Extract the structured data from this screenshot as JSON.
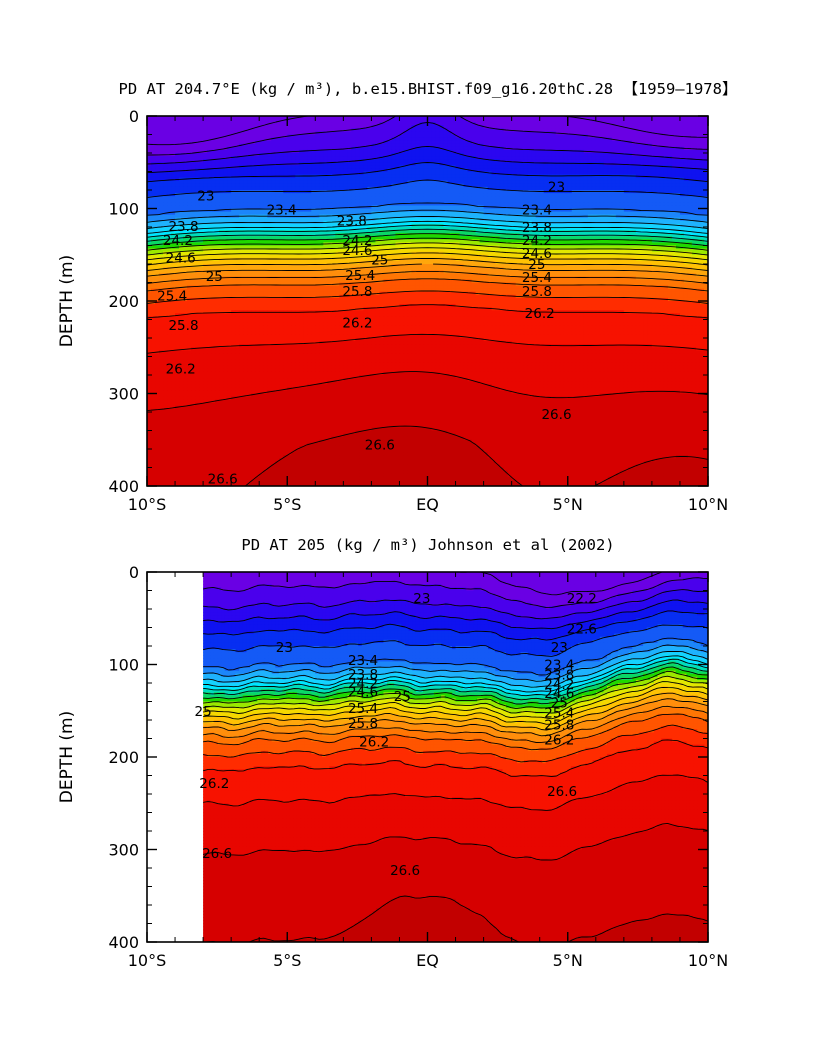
{
  "chart_data": [
    {
      "type": "contour",
      "title": "PD AT 204.7°E (kg / m³), b.e15.BHIST.f09_g16.20thC.28 【1959–1978】",
      "ylabel": "DEPTH (m)",
      "xlabel": "",
      "xlim": [
        -10,
        10
      ],
      "ylim": [
        400,
        0
      ],
      "y_inverted": true,
      "xticks": [
        -10,
        -5,
        0,
        5,
        10
      ],
      "xtick_labels": [
        "10°S",
        "5°S",
        "EQ",
        "5°N",
        "10°N"
      ],
      "yticks": [
        0,
        100,
        200,
        300,
        400
      ],
      "ytick_labels": [
        "0",
        "100",
        "200",
        "300",
        "400"
      ],
      "contour_interval": 0.2,
      "data_extent_x": [
        -10,
        10
      ],
      "surface_min_value": 21.8,
      "contour_labels": [
        {
          "text": "23",
          "x": -7.9,
          "y": 86
        },
        {
          "text": "23",
          "x": 4.6,
          "y": 76
        },
        {
          "text": "23.4",
          "x": -5.2,
          "y": 101
        },
        {
          "text": "23.4",
          "x": 3.9,
          "y": 101
        },
        {
          "text": "23.8",
          "x": -8.7,
          "y": 119
        },
        {
          "text": "23.8",
          "x": -2.7,
          "y": 113
        },
        {
          "text": "23.8",
          "x": 3.9,
          "y": 120
        },
        {
          "text": "24.2",
          "x": -8.9,
          "y": 134
        },
        {
          "text": "24.2",
          "x": -2.5,
          "y": 134
        },
        {
          "text": "24.2",
          "x": 3.9,
          "y": 134
        },
        {
          "text": "24.6",
          "x": -8.8,
          "y": 153
        },
        {
          "text": "24.6",
          "x": -2.5,
          "y": 145
        },
        {
          "text": "24.6",
          "x": 3.9,
          "y": 148
        },
        {
          "text": "25",
          "x": -1.7,
          "y": 155
        },
        {
          "text": "25",
          "x": -7.6,
          "y": 173
        },
        {
          "text": "25",
          "x": 3.9,
          "y": 160
        },
        {
          "text": "25.4",
          "x": -2.4,
          "y": 172
        },
        {
          "text": "25.4",
          "x": 3.9,
          "y": 174
        },
        {
          "text": "25.4",
          "x": -9.1,
          "y": 194
        },
        {
          "text": "25.8",
          "x": -2.5,
          "y": 189
        },
        {
          "text": "25.8",
          "x": 3.9,
          "y": 189
        },
        {
          "text": "25.8",
          "x": -8.7,
          "y": 226
        },
        {
          "text": "26.2",
          "x": -2.5,
          "y": 223
        },
        {
          "text": "26.2",
          "x": 4.0,
          "y": 213
        },
        {
          "text": "26.2",
          "x": -8.8,
          "y": 273
        },
        {
          "text": "26.6",
          "x": 4.6,
          "y": 322
        },
        {
          "text": "26.6",
          "x": -1.7,
          "y": 355
        },
        {
          "text": "26.6",
          "x": -7.3,
          "y": 392
        }
      ]
    },
    {
      "type": "contour",
      "title": "PD AT 205 (kg / m³) Johnson et al (2002)",
      "ylabel": "DEPTH (m)",
      "xlabel": "",
      "xlim": [
        -10,
        10
      ],
      "ylim": [
        400,
        0
      ],
      "y_inverted": true,
      "xticks": [
        -10,
        -5,
        0,
        5,
        10
      ],
      "xtick_labels": [
        "10°S",
        "5°S",
        "EQ",
        "5°N",
        "10°N"
      ],
      "yticks": [
        0,
        100,
        200,
        300,
        400
      ],
      "ytick_labels": [
        "0",
        "100",
        "200",
        "300",
        "400"
      ],
      "contour_interval": 0.2,
      "data_extent_x": [
        -8,
        10
      ],
      "surface_min_value": 22.0,
      "contour_labels": [
        {
          "text": "22.2",
          "x": 5.5,
          "y": 28
        },
        {
          "text": "23",
          "x": -0.2,
          "y": 28
        },
        {
          "text": "22.6",
          "x": 5.5,
          "y": 61
        },
        {
          "text": "23",
          "x": -5.1,
          "y": 81
        },
        {
          "text": "23",
          "x": 4.7,
          "y": 81
        },
        {
          "text": "23.4",
          "x": -2.3,
          "y": 95
        },
        {
          "text": "23.4",
          "x": 4.7,
          "y": 100
        },
        {
          "text": "23.8",
          "x": -2.3,
          "y": 110
        },
        {
          "text": "23.8",
          "x": 4.7,
          "y": 111
        },
        {
          "text": "24.2",
          "x": -2.3,
          "y": 120
        },
        {
          "text": "24.2",
          "x": 4.7,
          "y": 121
        },
        {
          "text": "24.6",
          "x": -2.3,
          "y": 129
        },
        {
          "text": "24.6",
          "x": 4.7,
          "y": 131
        },
        {
          "text": "25",
          "x": -0.9,
          "y": 134
        },
        {
          "text": "25",
          "x": 4.7,
          "y": 141
        },
        {
          "text": "25.4",
          "x": -2.3,
          "y": 147
        },
        {
          "text": "25.4",
          "x": 4.7,
          "y": 152
        },
        {
          "text": "25.8",
          "x": -2.3,
          "y": 163
        },
        {
          "text": "25.8",
          "x": 4.7,
          "y": 165
        },
        {
          "text": "25",
          "x": -8.0,
          "y": 150
        },
        {
          "text": "26.2",
          "x": -1.9,
          "y": 183
        },
        {
          "text": "26.2",
          "x": 4.7,
          "y": 181
        },
        {
          "text": "26.2",
          "x": -7.6,
          "y": 228
        },
        {
          "text": "26.6",
          "x": 4.8,
          "y": 237
        },
        {
          "text": "26.6",
          "x": -7.5,
          "y": 304
        },
        {
          "text": "26.6",
          "x": -0.8,
          "y": 322
        }
      ]
    }
  ]
}
